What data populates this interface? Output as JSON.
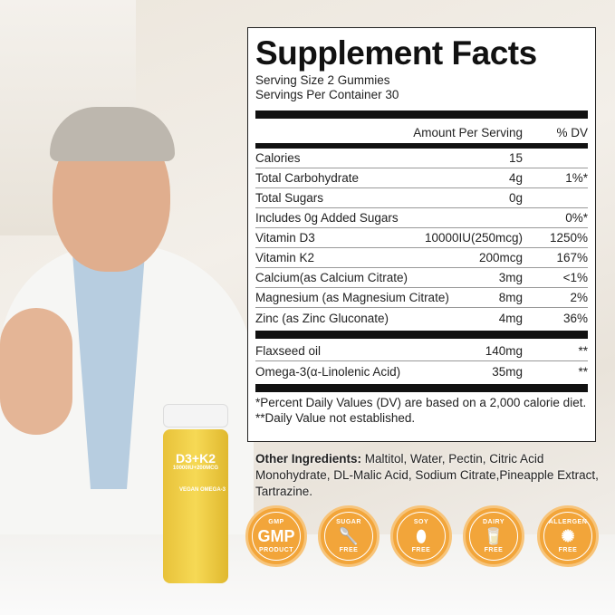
{
  "panel": {
    "title": "Supplement Facts",
    "serving_size": "Serving Size 2 Gummies",
    "servings_per_container": "Servings Per Container 30",
    "header": {
      "amount": "Amount Per Serving",
      "dv": "% DV"
    },
    "rows": [
      {
        "name": "Calories",
        "amount": "15",
        "dv": ""
      },
      {
        "name": "Total Carbohydrate",
        "amount": "4g",
        "dv": "1%*"
      },
      {
        "name": "Total Sugars",
        "amount": "0g",
        "dv": ""
      },
      {
        "name": "Includes 0g Added Sugars",
        "amount": "",
        "dv": "0%*"
      },
      {
        "name": "Vitamin  D3",
        "amount": "10000IU(250mcg)",
        "dv": "1250%"
      },
      {
        "name": "Vitamin  K2",
        "amount": "200mcg",
        "dv": "167%"
      },
      {
        "name": "Calcium(as Calcium Citrate)",
        "amount": "3mg",
        "dv": "<1%"
      },
      {
        "name": "Magnesium (as Magnesium Citrate)",
        "amount": "8mg",
        "dv": "2%"
      },
      {
        "name": "Zinc (as Zinc Gluconate)",
        "amount": "4mg",
        "dv": "36%"
      }
    ],
    "rows2": [
      {
        "name": "Flaxseed oil",
        "amount": "140mg",
        "dv": "**"
      },
      {
        "name": " Omega-3(α-Linolenic Acid)",
        "amount": "35mg",
        "dv": "**"
      }
    ],
    "footnote1": "*Percent Daily Values (DV) are based on a 2,000 calorie diet.",
    "footnote2": "**Daily Value not established."
  },
  "other": {
    "label": "Other Ingredients:",
    "text": " Maltitol, Water, Pectin, Citric Acid Monohydrate, DL-Malic Acid, Sodium Citrate,Pineapple Extract, Tartrazine."
  },
  "bottle": {
    "name": "D3+K2",
    "dose": "10000IU+200MCG",
    "tag": "VEGAN OMEGA-3"
  },
  "badges": [
    {
      "top": "GMP",
      "icon": "GMP",
      "bottom": "PRODUCT"
    },
    {
      "top": "SUGAR",
      "icon": "🥄",
      "bottom": "FREE"
    },
    {
      "top": "SOY",
      "icon": "⬮",
      "bottom": "FREE"
    },
    {
      "top": "DAIRY",
      "icon": "🥛",
      "bottom": "FREE"
    },
    {
      "top": "ALLERGEN",
      "icon": "✺",
      "bottom": "FREE"
    }
  ],
  "colors": {
    "badge": "#f2a53a",
    "bottle": "#f0c93a"
  }
}
